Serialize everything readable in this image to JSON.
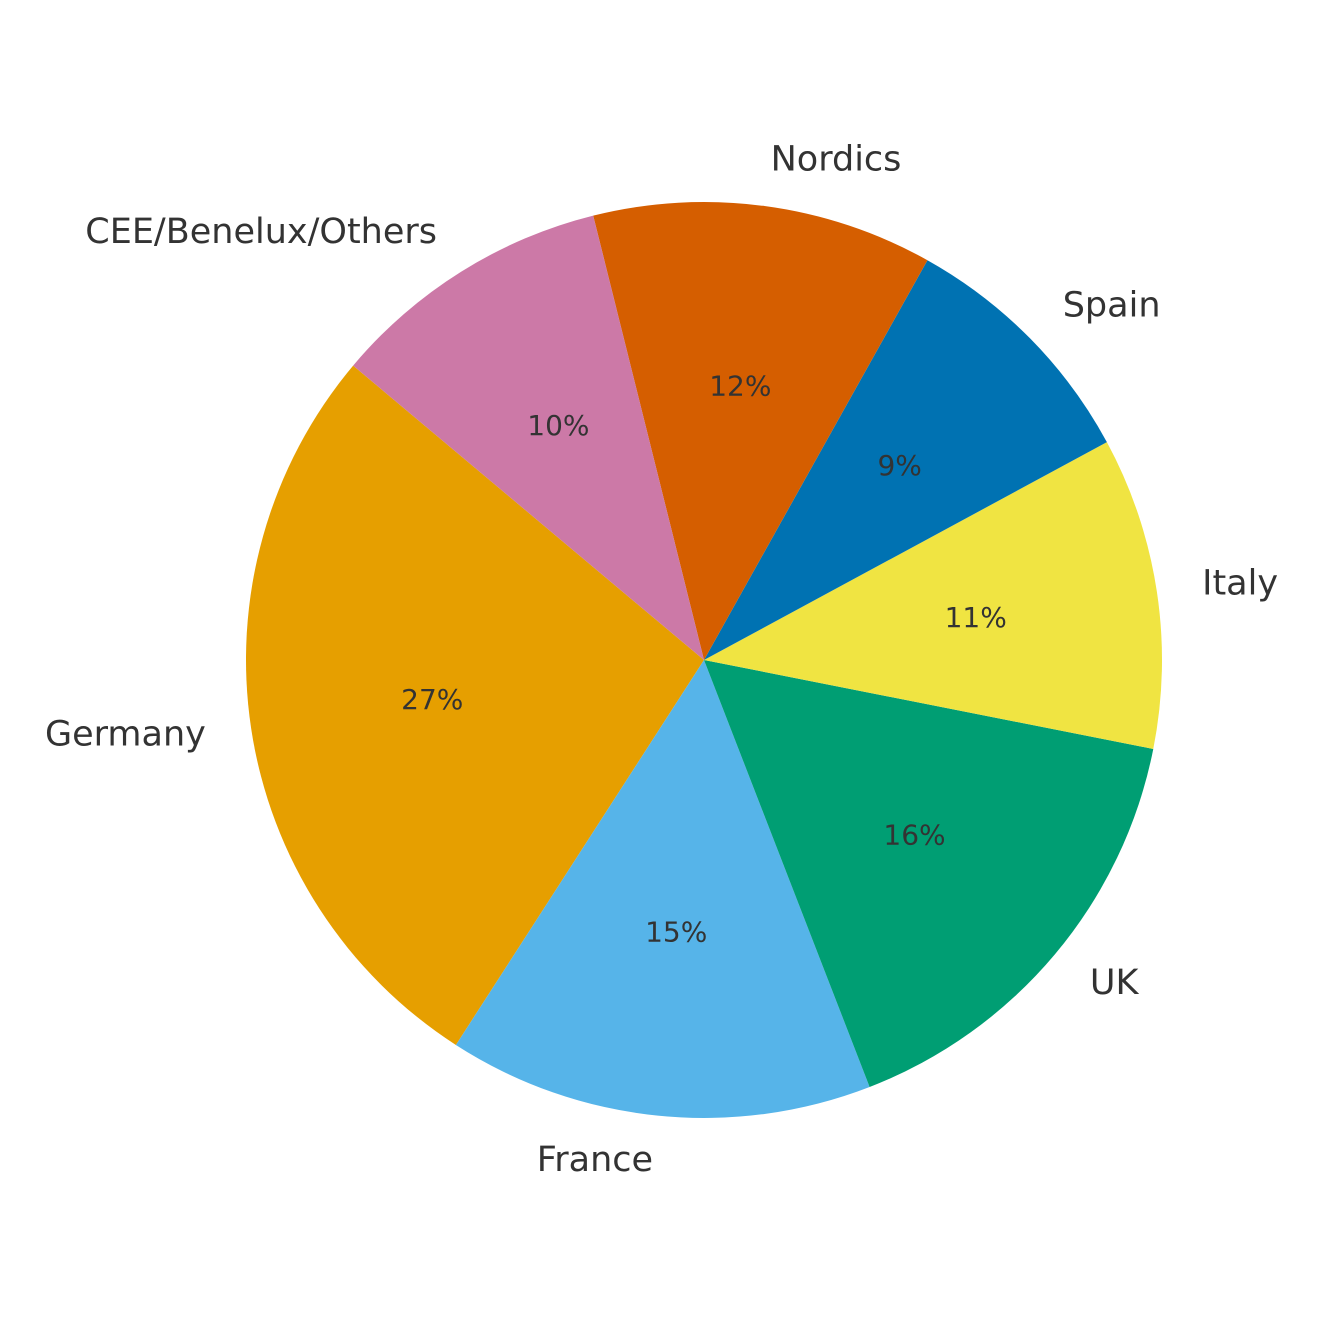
{
  "chart_data": {
    "type": "pie",
    "categories": [
      "Germany",
      "France",
      "UK",
      "Italy",
      "Spain",
      "Nordics",
      "CEE/Benelux/Others"
    ],
    "values": [
      27,
      15,
      16,
      11,
      9,
      12,
      10
    ],
    "value_labels": [
      "27%",
      "15%",
      "16%",
      "11%",
      "9%",
      "12%",
      "10%"
    ],
    "colors": [
      "#e69f00",
      "#56b4e9",
      "#009e73",
      "#f0e442",
      "#0072b2",
      "#d55e00",
      "#cc79a7"
    ]
  }
}
